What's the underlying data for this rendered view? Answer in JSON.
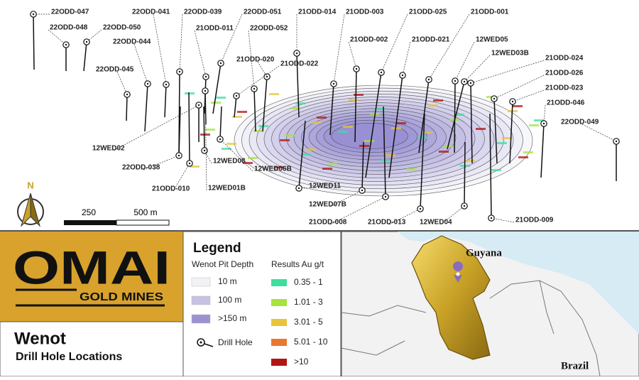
{
  "map": {
    "drill_holes": [
      "22ODD-047",
      "22ODD-048",
      "22ODD-050",
      "22ODD-041",
      "22ODD-039",
      "22ODD-051",
      "21ODD-014",
      "21ODD-003",
      "21ODD-025",
      "21ODD-001",
      "21ODD-011",
      "22ODD-052",
      "21ODD-020",
      "22ODD-044",
      "21ODD-002",
      "21ODD-021",
      "12WED05",
      "12WED03B",
      "21ODD-022",
      "21ODD-024",
      "21ODD-026",
      "21ODD-023",
      "22ODD-045",
      "21ODD-046",
      "22ODD-049",
      "12WED02",
      "22ODD-038",
      "12WED08",
      "12WED06B",
      "21ODD-010",
      "12WED01B",
      "12WED11",
      "12WED07B",
      "21ODD-008",
      "21ODD-013",
      "12WED04",
      "21ODD-009"
    ],
    "north": "N",
    "scale": [
      "250",
      "500 m"
    ]
  },
  "logo": {
    "name": "OMAI",
    "subtitle": "GOLD MINES"
  },
  "title": {
    "main": "Wenot",
    "sub": "Drill Hole Locations"
  },
  "legend": {
    "title": "Legend",
    "pit_depth": {
      "title": "Wenot Pit Depth",
      "items": [
        {
          "label": "10 m",
          "color": "#f1f1f6"
        },
        {
          "label": "100 m",
          "color": "#c6c2e3"
        },
        {
          "label": ">150 m",
          "color": "#9c92d1"
        }
      ]
    },
    "drill_hole": "Drill Hole",
    "results": {
      "title": "Results Au g/t",
      "items": [
        {
          "label": "0.35 - 1",
          "color": "#3ddf9c"
        },
        {
          "label": "1.01 - 3",
          "color": "#a6e33c"
        },
        {
          "label": "3.01 - 5",
          "color": "#e8c43a"
        },
        {
          "label": "5.01 - 10",
          "color": "#e8782e"
        },
        {
          "label": ">10",
          "color": "#b01616"
        }
      ]
    }
  },
  "inset": {
    "country": "Guyana",
    "neighbor": "Brazil"
  }
}
